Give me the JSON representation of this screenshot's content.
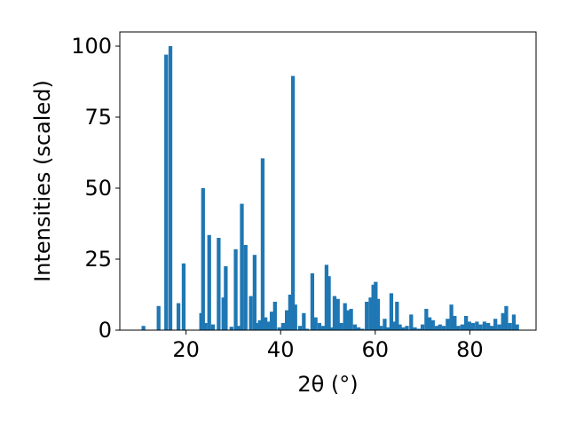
{
  "chart_data": {
    "type": "bar",
    "xlabel": "2θ (°)",
    "ylabel": "Intensities (scaled)",
    "xlim": [
      6.0,
      94.0
    ],
    "ylim": [
      0,
      105
    ],
    "xticks": [
      20,
      40,
      60,
      80
    ],
    "yticks": [
      0,
      25,
      50,
      75,
      100
    ],
    "grid": false,
    "bar_color": "#1f77b4",
    "bar_width": 0.8,
    "x": [
      11.0,
      14.2,
      15.8,
      16.7,
      18.4,
      19.5,
      23.2,
      23.6,
      24.1,
      24.9,
      25.7,
      26.9,
      27.9,
      28.4,
      29.6,
      30.5,
      31.1,
      31.8,
      32.6,
      33.7,
      34.5,
      35.1,
      35.6,
      36.2,
      36.8,
      37.4,
      38.1,
      38.8,
      39.7,
      40.5,
      41.3,
      42.0,
      42.6,
      43.1,
      44.1,
      44.9,
      45.6,
      46.7,
      47.4,
      48.2,
      49.0,
      49.7,
      50.2,
      50.7,
      51.4,
      52.1,
      52.8,
      53.6,
      54.2,
      54.9,
      55.7,
      56.5,
      57.3,
      58.2,
      59.0,
      59.6,
      60.1,
      60.6,
      61.2,
      62.0,
      62.7,
      63.4,
      64.0,
      64.6,
      65.2,
      65.9,
      66.7,
      67.6,
      68.4,
      69.2,
      70.0,
      70.8,
      71.5,
      72.2,
      73.0,
      73.7,
      74.5,
      75.3,
      76.1,
      76.8,
      77.6,
      78.4,
      79.2,
      79.9,
      80.7,
      81.5,
      82.3,
      83.1,
      83.9,
      84.6,
      85.4,
      86.2,
      87.0,
      87.7,
      88.5,
      89.3,
      90.0
    ],
    "values": [
      1.5,
      8.5,
      97.0,
      100.0,
      9.5,
      23.5,
      6.0,
      50.0,
      2.5,
      33.5,
      2.0,
      32.5,
      11.5,
      22.5,
      1.2,
      28.5,
      1.5,
      44.5,
      30.0,
      12.0,
      26.5,
      2.5,
      3.5,
      60.5,
      4.5,
      3.0,
      6.5,
      10.0,
      1.0,
      2.5,
      7.0,
      12.5,
      89.5,
      9.0,
      1.5,
      6.0,
      0.5,
      20.0,
      4.5,
      2.5,
      1.5,
      23.0,
      19.0,
      1.0,
      12.0,
      11.0,
      2.5,
      9.5,
      7.0,
      7.5,
      2.0,
      1.0,
      0.5,
      10.0,
      11.5,
      16.0,
      17.0,
      11.0,
      1.5,
      4.0,
      1.0,
      13.0,
      3.0,
      10.0,
      2.0,
      1.0,
      1.5,
      5.5,
      1.0,
      0.5,
      2.0,
      7.5,
      4.5,
      3.5,
      1.5,
      2.0,
      1.5,
      4.0,
      9.0,
      5.0,
      1.5,
      2.0,
      5.0,
      3.0,
      2.5,
      3.0,
      2.0,
      3.0,
      2.5,
      1.5,
      4.0,
      2.0,
      6.0,
      8.5,
      2.5,
      5.5,
      2.0
    ]
  }
}
